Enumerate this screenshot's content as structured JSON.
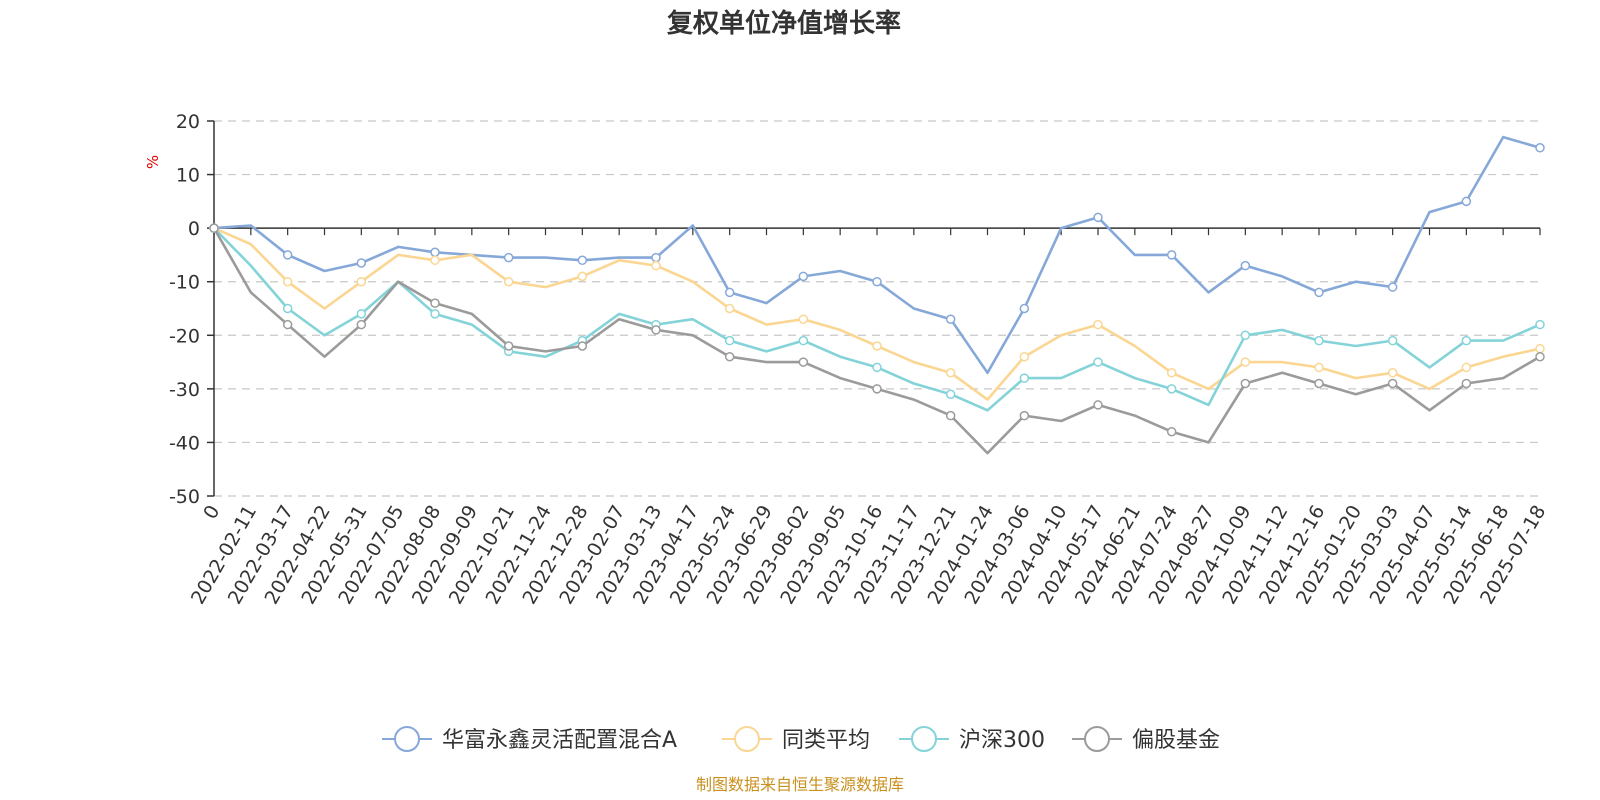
{
  "colors": {
    "华富永鑫灵活配置混合A": "#86a8d9",
    "同类平均": "#fbd692",
    "沪深300": "#84d3d8",
    "偏股基金": "#9b9b9b",
    "source": "#c8901e",
    "unit": "#e00000"
  },
  "chart_data": {
    "type": "line",
    "title": "复权单位净值增长率",
    "unit_label": "%",
    "ylim": [
      -50,
      20
    ],
    "yticks": [
      20,
      10,
      0,
      -10,
      -20,
      -30,
      -40,
      -50
    ],
    "grid": true,
    "legend_position": "bottom",
    "x": [
      "0",
      "2022-02-11",
      "2022-03-17",
      "2022-04-22",
      "2022-05-31",
      "2022-07-05",
      "2022-08-08",
      "2022-09-09",
      "2022-10-21",
      "2022-11-24",
      "2022-12-28",
      "2023-02-07",
      "2023-03-13",
      "2023-04-17",
      "2023-05-24",
      "2023-06-29",
      "2023-08-02",
      "2023-09-05",
      "2023-10-16",
      "2023-11-17",
      "2023-12-21",
      "2024-01-24",
      "2024-03-06",
      "2024-04-10",
      "2024-05-17",
      "2024-06-21",
      "2024-07-24",
      "2024-08-27",
      "2024-10-09",
      "2024-11-12",
      "2024-12-16",
      "2025-01-20",
      "2025-03-03",
      "2025-04-07",
      "2025-05-14",
      "2025-06-18",
      "2025-07-18"
    ],
    "series": [
      {
        "name": "华富永鑫灵活配置混合A",
        "values": [
          0,
          0.5,
          -5,
          -8,
          -6.5,
          -3.5,
          -4.5,
          -5,
          -5.5,
          -5.5,
          -6,
          -5.5,
          -5.5,
          0.5,
          -12,
          -14,
          -9,
          -8,
          -10,
          -15,
          -17,
          -27,
          -15,
          0,
          2,
          -5,
          -5,
          -12,
          -7,
          -9,
          -12,
          -10,
          -11,
          3,
          5,
          17,
          15
        ]
      },
      {
        "name": "同类平均",
        "values": [
          0,
          -3,
          -10,
          -15,
          -10,
          -5,
          -6,
          -5,
          -10,
          -11,
          -9,
          -6,
          -7,
          -10,
          -15,
          -18,
          -17,
          -19,
          -22,
          -25,
          -27,
          -32,
          -24,
          -20,
          -18,
          -22,
          -27,
          -30,
          -25,
          -25,
          -26,
          -28,
          -27,
          -30,
          -26,
          -24,
          -22.5
        ]
      },
      {
        "name": "沪深300",
        "values": [
          0,
          -7,
          -15,
          -20,
          -16,
          -10,
          -16,
          -18,
          -23,
          -24,
          -21,
          -16,
          -18,
          -17,
          -21,
          -23,
          -21,
          -24,
          -26,
          -29,
          -31,
          -34,
          -28,
          -28,
          -25,
          -28,
          -30,
          -33,
          -20,
          -19,
          -21,
          -22,
          -21,
          -26,
          -21,
          -21,
          -18
        ]
      },
      {
        "name": "偏股基金",
        "values": [
          0,
          -12,
          -18,
          -24,
          -18,
          -10,
          -14,
          -16,
          -22,
          -23,
          -22,
          -17,
          -19,
          -20,
          -24,
          -25,
          -25,
          -28,
          -30,
          -32,
          -35,
          -42,
          -35,
          -36,
          -33,
          -35,
          -38,
          -40,
          -29,
          -27,
          -29,
          -31,
          -29,
          -34,
          -29,
          -28,
          -24
        ]
      }
    ],
    "source": "制图数据来自恒生聚源数据库"
  }
}
